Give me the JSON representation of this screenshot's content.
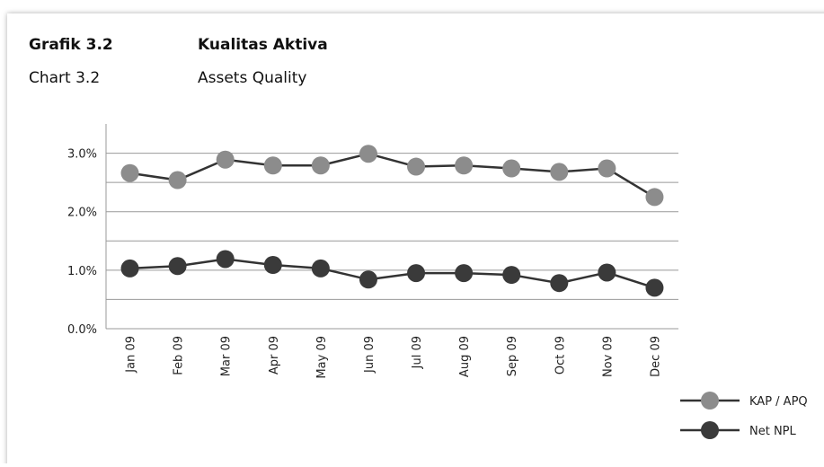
{
  "header": {
    "label_id": "Grafik 3.2",
    "title_id": "Kualitas Aktiva",
    "label_en": "Chart 3.2",
    "title_en": "Assets Quality"
  },
  "chart_data": {
    "type": "line",
    "categories": [
      "Jan 09",
      "Feb 09",
      "Mar 09",
      "Apr 09",
      "May 09",
      "Jun 09",
      "Jul 09",
      "Aug 09",
      "Sep 09",
      "Oct 09",
      "Nov 09",
      "Dec 09"
    ],
    "series": [
      {
        "name": "KAP / APQ",
        "color": "#8c8c8c",
        "values": [
          2.66,
          2.54,
          2.89,
          2.79,
          2.79,
          2.99,
          2.77,
          2.79,
          2.74,
          2.68,
          2.74,
          2.25
        ]
      },
      {
        "name": "Net NPL",
        "color": "#3a3a3a",
        "values": [
          1.03,
          1.07,
          1.19,
          1.09,
          1.03,
          0.84,
          0.95,
          0.95,
          0.92,
          0.78,
          0.96,
          0.7
        ]
      }
    ],
    "line_color": "#333333",
    "ylim": [
      0,
      3.5
    ],
    "yticks": [
      {
        "value": 0,
        "label": "0.0%"
      },
      {
        "value": 1,
        "label": "1.0%"
      },
      {
        "value": 2,
        "label": "2.0%"
      },
      {
        "value": 3,
        "label": "3.0%"
      }
    ],
    "minor_yticks": [
      0.5,
      1.5,
      2.5
    ],
    "grid": true,
    "legend": "bottom-right"
  }
}
